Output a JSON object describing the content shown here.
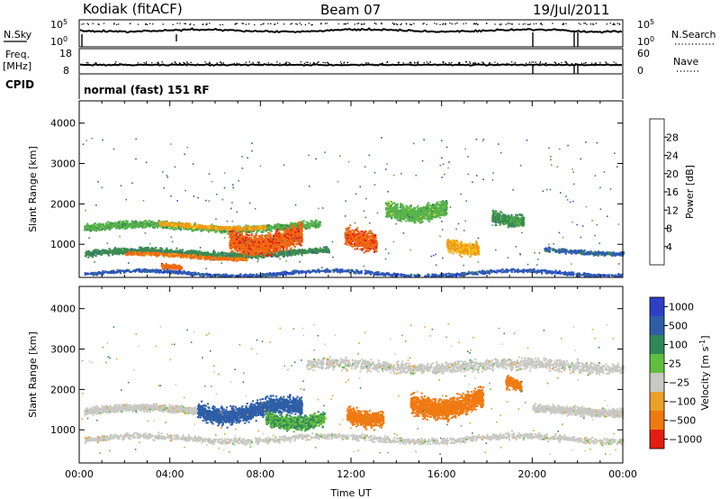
{
  "header": {
    "station": "Kodiak (fitACF)",
    "beam": "Beam 07",
    "date": "19/Jul/2011"
  },
  "strip_nsky": {
    "left_label": "N.Sky",
    "right_label": "N.Search",
    "left_ticks": [
      "10^5",
      "10^0"
    ],
    "right_ticks": [
      "10^5",
      "10^0"
    ]
  },
  "strip_freq": {
    "left_label_1": "Freq.",
    "left_label_2": "[MHz]",
    "right_label": "Nave",
    "left_ticks": [
      "18",
      "8"
    ],
    "right_ticks": [
      "60",
      "0"
    ]
  },
  "cpid": {
    "label": "CPID",
    "mode_text": "normal (fast) 151 RF"
  },
  "colors": {
    "power": [
      "#1e2cf0",
      "#2f58b8",
      "#3b8a52",
      "#58b34a",
      "#f4d21e",
      "#f29a18",
      "#ee6a12",
      "#e21d12"
    ],
    "velocity": [
      "#2f3fc6",
      "#2f5ea8",
      "#2e8858",
      "#62be3e",
      "#c8c8c4",
      "#eaa12a",
      "#f07a12",
      "#e21d12"
    ]
  },
  "chart_data": [
    {
      "type": "heatmap",
      "parameter": "Power",
      "ylabel": "Slant Range [km]",
      "xlabel": "",
      "x_unit": "hour UT",
      "xlim": [
        0,
        24
      ],
      "ylim": [
        180,
        4550
      ],
      "y_ticks": [
        1000,
        2000,
        3000,
        4000
      ],
      "colorbar": {
        "label": "Power [dB]",
        "range": [
          0,
          32
        ],
        "ticks": [
          4,
          8,
          12,
          16,
          20,
          24,
          28
        ]
      },
      "features": [
        {
          "x": [
            0.2,
            11.0
          ],
          "y_center": 800,
          "y_width": 220,
          "value": 10,
          "orientation": "horizontal"
        },
        {
          "x": [
            2.0,
            7.4
          ],
          "y_center": 720,
          "y_width": 130,
          "value": 25,
          "orientation": "horizontal"
        },
        {
          "x": [
            3.6,
            4.5
          ],
          "y_center": 420,
          "y_width": 200,
          "value": 26,
          "orientation": "horizontal"
        },
        {
          "x": [
            0.2,
            10.6
          ],
          "y_center": 1450,
          "y_width": 240,
          "value": 13,
          "orientation": "horizontal"
        },
        {
          "x": [
            3.5,
            8.2
          ],
          "y_center": 1480,
          "y_width": 140,
          "value": 21,
          "orientation": "horizontal"
        },
        {
          "x": [
            6.6,
            9.8
          ],
          "y_center": 1150,
          "y_width": 700,
          "value": 27,
          "orientation": "vertical"
        },
        {
          "x": [
            11.7,
            13.1
          ],
          "y_center": 1250,
          "y_width": 650,
          "value": 27,
          "orientation": "vertical"
        },
        {
          "x": [
            16.2,
            17.6
          ],
          "y_center": 1000,
          "y_width": 450,
          "value": 21,
          "orientation": "vertical"
        },
        {
          "x": [
            13.5,
            16.2
          ],
          "y_center": 1900,
          "y_width": 550,
          "value": 14,
          "orientation": "vertical"
        },
        {
          "x": [
            18.2,
            19.6
          ],
          "y_center": 1700,
          "y_width": 450,
          "value": 11,
          "orientation": "vertical"
        },
        {
          "x": [
            20.5,
            24.0
          ],
          "y_center": 850,
          "y_width": 150,
          "value": 7,
          "orientation": "horizontal"
        },
        {
          "x": [
            0.2,
            24.0
          ],
          "y_center": 300,
          "y_width": 120,
          "value": 6,
          "orientation": "horizontal"
        }
      ]
    },
    {
      "type": "heatmap",
      "parameter": "Velocity",
      "ylabel": "Slant Range [km]",
      "xlabel": "Time UT",
      "x_unit": "hour UT",
      "xlim": [
        0,
        24
      ],
      "ylim": [
        180,
        4550
      ],
      "x_ticks": [
        "00:00",
        "04:00",
        "08:00",
        "12:00",
        "16:00",
        "20:00",
        "00:00"
      ],
      "y_ticks": [
        1000,
        2000,
        3000,
        4000
      ],
      "colorbar": {
        "label": "Velocity [m s^-1]",
        "ticks": [
          -1000,
          -500,
          -100,
          -25,
          25,
          100,
          500,
          1000
        ]
      },
      "features": [
        {
          "x": [
            0.2,
            24.0
          ],
          "y_center": 800,
          "y_width": 220,
          "value": 0,
          "orientation": "horizontal"
        },
        {
          "x": [
            0.2,
            5.5
          ],
          "y_center": 1500,
          "y_width": 250,
          "value": 0,
          "orientation": "horizontal"
        },
        {
          "x": [
            5.2,
            9.8
          ],
          "y_center": 1500,
          "y_width": 600,
          "value": 150,
          "orientation": "vertical"
        },
        {
          "x": [
            8.2,
            10.8
          ],
          "y_center": 1300,
          "y_width": 500,
          "value": 60,
          "orientation": "vertical"
        },
        {
          "x": [
            11.8,
            13.4
          ],
          "y_center": 1400,
          "y_width": 550,
          "value": -200,
          "orientation": "vertical"
        },
        {
          "x": [
            14.6,
            17.8
          ],
          "y_center": 1700,
          "y_width": 700,
          "value": -250,
          "orientation": "vertical"
        },
        {
          "x": [
            10.0,
            24.0
          ],
          "y_center": 2600,
          "y_width": 400,
          "value": 0,
          "orientation": "horizontal"
        },
        {
          "x": [
            18.8,
            19.5
          ],
          "y_center": 2200,
          "y_width": 400,
          "value": -300,
          "orientation": "vertical"
        },
        {
          "x": [
            20.0,
            24.0
          ],
          "y_center": 1500,
          "y_width": 300,
          "value": 0,
          "orientation": "horizontal"
        }
      ]
    }
  ]
}
